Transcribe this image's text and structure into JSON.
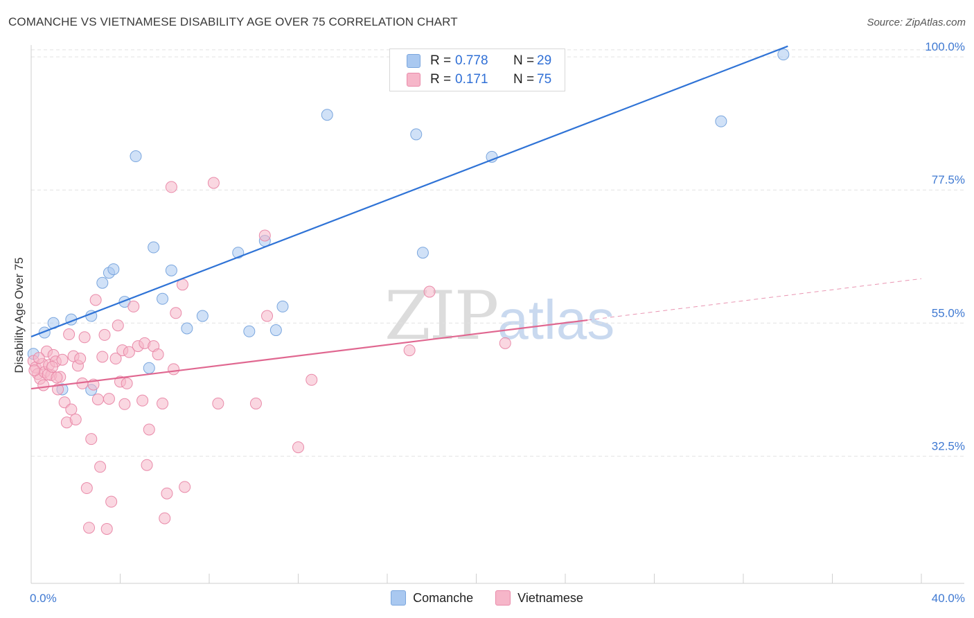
{
  "title": "COMANCHE VS VIETNAMESE DISABILITY AGE OVER 75 CORRELATION CHART",
  "source": "Source: ZipAtlas.com",
  "watermark": {
    "zip": "ZIP",
    "atlas": "atlas"
  },
  "legend": {
    "rows": [
      {
        "r_label": "R =",
        "r_value": "0.778",
        "n_label": "N =",
        "n_value": "29",
        "color": "#a9c8f0"
      },
      {
        "r_label": "R =",
        "r_value": "0.171",
        "n_label": "N =",
        "n_value": "75",
        "color": "#f6b6c9"
      }
    ]
  },
  "bottom_legend": [
    {
      "label": "Comanche",
      "color": "#a9c8f0"
    },
    {
      "label": "Vietnamese",
      "color": "#f6b6c9"
    }
  ],
  "chart_data": {
    "type": "scatter",
    "title": "COMANCHE VS VIETNAMESE DISABILITY AGE OVER 75 CORRELATION CHART",
    "xlabel": "",
    "ylabel": "Disability Age Over 75",
    "xlim": [
      0,
      40
    ],
    "ylim": [
      11,
      102
    ],
    "x_tick_labels": [
      "0.0%",
      "40.0%"
    ],
    "y_ticks": [
      32.5,
      55.0,
      77.5,
      100.0
    ],
    "y_tick_labels": [
      "32.5%",
      "55.0%",
      "77.5%",
      "100.0%"
    ],
    "grid": true,
    "series": [
      {
        "name": "Comanche",
        "color": "#a9c8f0",
        "stroke": "#7aa6de",
        "trend_color": "#2f73d6",
        "trend": [
          [
            0,
            52.7
          ],
          [
            34.0,
            101.8
          ]
        ],
        "points": [
          [
            0.1,
            49.8
          ],
          [
            0.6,
            53.4
          ],
          [
            1.0,
            55.0
          ],
          [
            1.4,
            43.8
          ],
          [
            1.8,
            55.6
          ],
          [
            2.7,
            56.2
          ],
          [
            2.7,
            43.7
          ],
          [
            3.2,
            61.8
          ],
          [
            3.5,
            63.5
          ],
          [
            3.7,
            64.1
          ],
          [
            4.2,
            58.6
          ],
          [
            4.7,
            83.2
          ],
          [
            5.3,
            47.4
          ],
          [
            5.5,
            67.8
          ],
          [
            5.9,
            59.1
          ],
          [
            6.3,
            63.9
          ],
          [
            7.7,
            56.2
          ],
          [
            7.0,
            54.1
          ],
          [
            9.3,
            66.9
          ],
          [
            9.8,
            53.6
          ],
          [
            10.5,
            68.9
          ],
          [
            11.0,
            53.8
          ],
          [
            11.3,
            57.8
          ],
          [
            13.3,
            90.2
          ],
          [
            17.3,
            86.9
          ],
          [
            17.6,
            66.9
          ],
          [
            20.7,
            83.1
          ],
          [
            31.0,
            89.1
          ],
          [
            33.8,
            100.4
          ]
        ]
      },
      {
        "name": "Vietnamese",
        "color": "#f6b6c9",
        "stroke": "#e98aa9",
        "trend_color": "#e06790",
        "trend": [
          [
            0,
            43.9
          ],
          [
            25.0,
            55.5
          ]
        ],
        "trend_dashed": [
          [
            25.0,
            55.5
          ],
          [
            40.0,
            62.5
          ]
        ],
        "points": [
          [
            0.1,
            48.6
          ],
          [
            0.2,
            47.5
          ],
          [
            0.3,
            46.4
          ],
          [
            0.4,
            45.6
          ],
          [
            0.5,
            48.1
          ],
          [
            0.6,
            46.7
          ],
          [
            0.7,
            50.2
          ],
          [
            0.8,
            47.9
          ],
          [
            0.9,
            46.2
          ],
          [
            1.0,
            49.6
          ],
          [
            1.1,
            48.5
          ],
          [
            1.2,
            43.8
          ],
          [
            1.3,
            45.9
          ],
          [
            1.4,
            48.8
          ],
          [
            1.5,
            41.6
          ],
          [
            1.6,
            38.2
          ],
          [
            1.7,
            53.1
          ],
          [
            1.8,
            40.4
          ],
          [
            1.9,
            49.4
          ],
          [
            2.0,
            38.7
          ],
          [
            2.1,
            47.8
          ],
          [
            2.2,
            49.0
          ],
          [
            2.3,
            44.8
          ],
          [
            2.4,
            52.6
          ],
          [
            2.5,
            27.1
          ],
          [
            2.6,
            20.4
          ],
          [
            2.7,
            35.4
          ],
          [
            2.8,
            44.6
          ],
          [
            2.9,
            58.9
          ],
          [
            3.0,
            42.1
          ],
          [
            3.1,
            30.7
          ],
          [
            3.2,
            49.3
          ],
          [
            3.3,
            53.0
          ],
          [
            3.4,
            20.2
          ],
          [
            3.5,
            42.2
          ],
          [
            3.6,
            24.8
          ],
          [
            3.8,
            49.0
          ],
          [
            3.9,
            54.6
          ],
          [
            4.0,
            45.1
          ],
          [
            4.1,
            50.4
          ],
          [
            4.2,
            41.3
          ],
          [
            4.3,
            44.8
          ],
          [
            4.4,
            50.1
          ],
          [
            4.6,
            57.8
          ],
          [
            4.8,
            51.1
          ],
          [
            5.0,
            41.9
          ],
          [
            5.1,
            51.6
          ],
          [
            5.2,
            31.0
          ],
          [
            5.3,
            37.0
          ],
          [
            5.5,
            51.1
          ],
          [
            5.7,
            49.7
          ],
          [
            5.9,
            41.4
          ],
          [
            6.0,
            22.0
          ],
          [
            6.1,
            26.2
          ],
          [
            6.3,
            78.0
          ],
          [
            6.4,
            47.2
          ],
          [
            6.5,
            56.7
          ],
          [
            6.8,
            61.5
          ],
          [
            6.9,
            27.3
          ],
          [
            8.2,
            78.7
          ],
          [
            8.4,
            41.4
          ],
          [
            10.1,
            41.4
          ],
          [
            10.5,
            69.8
          ],
          [
            10.6,
            56.2
          ],
          [
            12.0,
            34.0
          ],
          [
            12.6,
            45.4
          ],
          [
            17.0,
            50.4
          ],
          [
            17.9,
            60.3
          ],
          [
            21.3,
            51.6
          ],
          [
            0.15,
            47.0
          ],
          [
            0.35,
            49.1
          ],
          [
            0.55,
            44.5
          ],
          [
            0.75,
            46.3
          ],
          [
            0.95,
            47.6
          ],
          [
            1.15,
            45.8
          ]
        ]
      }
    ]
  }
}
